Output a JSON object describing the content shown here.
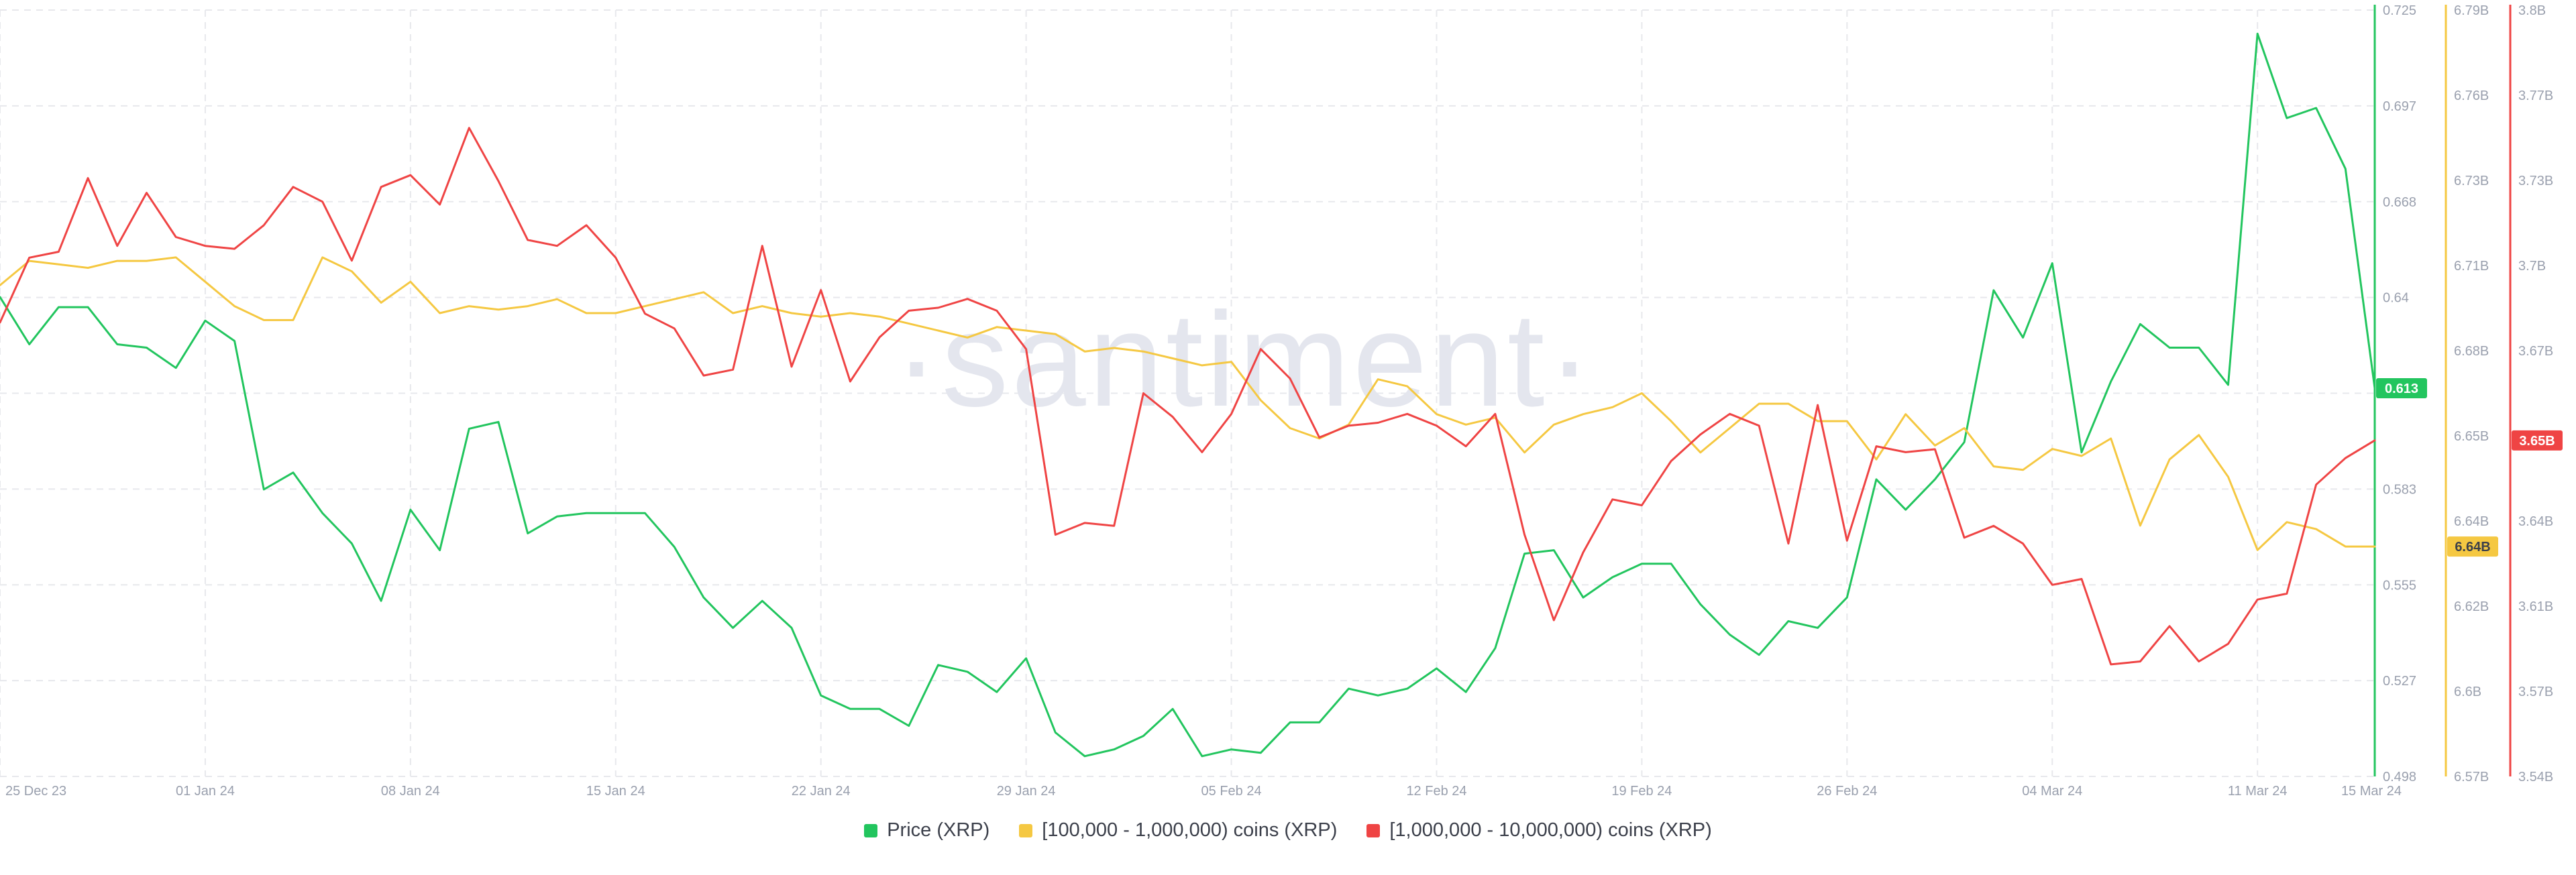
{
  "watermark": "·santiment·",
  "chart_data": {
    "type": "line",
    "x_ticks": [
      "25 Dec 23",
      "01 Jan 24",
      "08 Jan 24",
      "15 Jan 24",
      "22 Jan 24",
      "29 Jan 24",
      "05 Feb 24",
      "12 Feb 24",
      "19 Feb 24",
      "26 Feb 24",
      "04 Mar 24",
      "11 Mar 24",
      "15 Mar 24"
    ],
    "x_tick_index": [
      0,
      7,
      14,
      21,
      28,
      35,
      42,
      49,
      56,
      63,
      70,
      77,
      81
    ],
    "grid": true,
    "legend_position": "bottom-center",
    "axes": {
      "price": {
        "ticks": [
          "0.725",
          "0.697",
          "0.668",
          "0.64",
          "0.613",
          "0.583",
          "0.555",
          "0.527",
          "0.498"
        ],
        "range": [
          0.498,
          0.725
        ],
        "color": "#22c55e"
      },
      "holders_100k": {
        "ticks": [
          "6.79B",
          "6.76B",
          "6.73B",
          "6.71B",
          "6.68B",
          "6.65B",
          "6.64B",
          "6.62B",
          "6.6B",
          "6.57B"
        ],
        "range": [
          6.57,
          6.79
        ],
        "color": "#f5c842"
      },
      "holders_1m": {
        "ticks": [
          "3.8B",
          "3.77B",
          "3.73B",
          "3.7B",
          "3.67B",
          "3.65B",
          "3.64B",
          "3.61B",
          "3.57B",
          "3.54B"
        ],
        "range": [
          3.54,
          3.8
        ],
        "color": "#ef4444"
      }
    },
    "series": [
      {
        "name": "Price (XRP)",
        "axis": "price",
        "color": "#22c55e",
        "last_label": "0.613",
        "values": [
          0.64,
          0.626,
          0.637,
          0.637,
          0.626,
          0.625,
          0.619,
          0.633,
          0.627,
          0.583,
          0.588,
          0.576,
          0.567,
          0.55,
          0.577,
          0.565,
          0.601,
          0.603,
          0.57,
          0.575,
          0.576,
          0.576,
          0.576,
          0.566,
          0.551,
          0.542,
          0.55,
          0.542,
          0.522,
          0.518,
          0.518,
          0.513,
          0.531,
          0.529,
          0.523,
          0.533,
          0.511,
          0.504,
          0.506,
          0.51,
          0.518,
          0.504,
          0.506,
          0.505,
          0.514,
          0.514,
          0.524,
          0.522,
          0.524,
          0.53,
          0.523,
          0.536,
          0.564,
          0.565,
          0.551,
          0.557,
          0.561,
          0.561,
          0.549,
          0.54,
          0.534,
          0.544,
          0.542,
          0.551,
          0.586,
          0.577,
          0.586,
          0.597,
          0.642,
          0.628,
          0.65,
          0.594,
          0.615,
          0.632,
          0.625,
          0.625,
          0.614,
          0.718,
          0.693,
          0.696,
          0.678,
          0.613
        ]
      },
      {
        "name": "[100,000  - 1,000,000) coins (XRP)",
        "axis": "holders_100k",
        "color": "#f5c842",
        "last_label": "6.64B",
        "values": [
          6.711,
          6.718,
          6.717,
          6.716,
          6.718,
          6.718,
          6.719,
          6.712,
          6.705,
          6.701,
          6.701,
          6.719,
          6.715,
          6.706,
          6.712,
          6.703,
          6.705,
          6.704,
          6.705,
          6.707,
          6.703,
          6.703,
          6.705,
          6.707,
          6.709,
          6.703,
          6.705,
          6.703,
          6.702,
          6.703,
          6.702,
          6.7,
          6.698,
          6.696,
          6.699,
          6.698,
          6.697,
          6.692,
          6.693,
          6.692,
          6.69,
          6.688,
          6.689,
          6.678,
          6.67,
          6.667,
          6.671,
          6.684,
          6.682,
          6.674,
          6.671,
          6.673,
          6.663,
          6.671,
          6.674,
          6.676,
          6.68,
          6.672,
          6.663,
          6.67,
          6.677,
          6.677,
          6.672,
          6.672,
          6.661,
          6.674,
          6.665,
          6.67,
          6.659,
          6.658,
          6.664,
          6.662,
          6.667,
          6.642,
          6.661,
          6.668,
          6.656,
          6.635,
          6.643,
          6.641,
          6.636,
          6.636
        ]
      },
      {
        "name": "[1,000,000 - 10,000,000) coins (XRP)",
        "axis": "holders_1m",
        "color": "#ef4444",
        "last_label": "3.65B",
        "values": [
          3.694,
          3.716,
          3.718,
          3.743,
          3.72,
          3.738,
          3.723,
          3.72,
          3.719,
          3.727,
          3.74,
          3.735,
          3.715,
          3.74,
          3.744,
          3.734,
          3.76,
          3.742,
          3.722,
          3.72,
          3.727,
          3.716,
          3.697,
          3.692,
          3.676,
          3.678,
          3.72,
          3.679,
          3.705,
          3.674,
          3.689,
          3.698,
          3.699,
          3.702,
          3.698,
          3.685,
          3.622,
          3.626,
          3.625,
          3.67,
          3.662,
          3.65,
          3.663,
          3.685,
          3.675,
          3.655,
          3.659,
          3.66,
          3.663,
          3.659,
          3.652,
          3.663,
          3.622,
          3.593,
          3.616,
          3.634,
          3.632,
          3.647,
          3.656,
          3.663,
          3.659,
          3.619,
          3.666,
          3.62,
          3.652,
          3.65,
          3.651,
          3.621,
          3.625,
          3.619,
          3.605,
          3.607,
          3.578,
          3.579,
          3.591,
          3.579,
          3.585,
          3.6,
          3.602,
          3.639,
          3.648,
          3.654
        ]
      }
    ]
  }
}
